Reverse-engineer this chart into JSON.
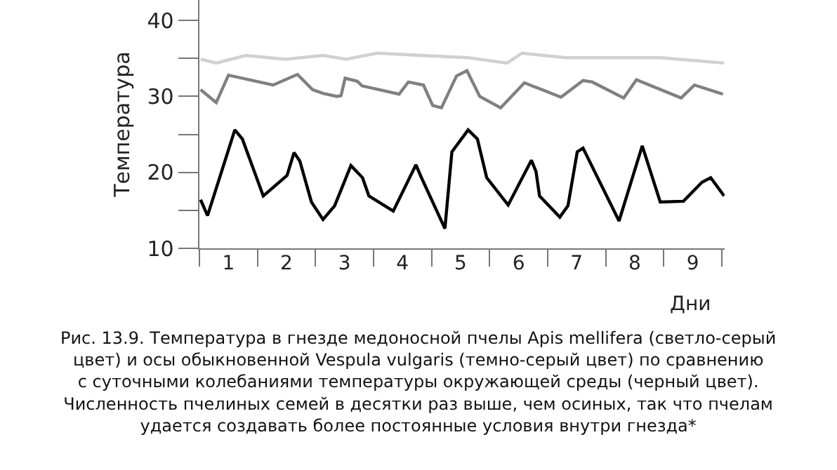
{
  "chart_data": {
    "type": "line",
    "xlabel": "Дни",
    "ylabel": "Температура",
    "annotations": [
      "Рис. 13.9. Температура в гнезде медоносной пчелы Apis mellifera (светло-серый\nцвет) и осы обыкновенной Vespula vulgaris (темно-серый цвет) по сравнению\nс суточными колебаниями температуры окружающей среды (черный цвет).\nЧисленность пчелиных семей в десятки раз выше, чем осиных, так что пчелам\nудается создавать более постоянные условия внутри гнезда*"
    ],
    "series": [
      {
        "color": "#d0d0d0",
        "x": [
          0.02,
          0.29,
          0.8,
          1.48,
          2.13,
          2.53,
          3.06,
          3.82,
          4.63,
          5.3,
          5.56,
          6.32,
          7.94,
          9.04
        ],
        "values": [
          34.9,
          34.4,
          35.4,
          34.9,
          35.4,
          34.9,
          35.7,
          35.4,
          35.1,
          34.4,
          35.7,
          35.1,
          35.1,
          34.4
        ]
      },
      {
        "color": "#808080",
        "x": [
          0.02,
          0.29,
          0.5,
          1.27,
          1.69,
          1.95,
          2.13,
          2.37,
          2.44,
          2.51,
          2.72,
          2.8,
          3.44,
          3.6,
          3.86,
          4.02,
          4.17,
          4.43,
          4.61,
          4.83,
          5.19,
          5.6,
          6.23,
          6.61,
          6.77,
          7.31,
          7.53,
          8.3,
          8.53,
          9.02
        ],
        "values": [
          30.9,
          29.2,
          32.8,
          31.5,
          32.9,
          30.9,
          30.4,
          30.0,
          30.1,
          32.4,
          32.0,
          31.4,
          30.3,
          31.9,
          31.5,
          28.8,
          28.5,
          32.7,
          33.4,
          30.0,
          28.5,
          31.8,
          29.9,
          32.1,
          31.9,
          29.8,
          32.2,
          29.8,
          31.5,
          30.3
        ]
      },
      {
        "color": "#000000",
        "x": [
          0.02,
          0.14,
          0.61,
          0.74,
          1.1,
          1.51,
          1.63,
          1.73,
          1.93,
          2.13,
          2.33,
          2.61,
          2.81,
          2.92,
          3.34,
          3.73,
          3.82,
          4.23,
          4.35,
          4.63,
          4.79,
          4.95,
          5.32,
          5.72,
          5.8,
          5.86,
          6.21,
          6.35,
          6.51,
          6.61,
          7.23,
          7.63,
          7.94,
          8.34,
          8.66,
          8.81,
          9.04
        ],
        "values": [
          16.4,
          14.3,
          25.6,
          24.4,
          16.9,
          19.6,
          22.6,
          21.5,
          16.1,
          13.8,
          15.6,
          20.9,
          19.3,
          16.9,
          14.9,
          21.0,
          19.4,
          12.6,
          22.7,
          25.6,
          24.4,
          19.3,
          15.7,
          21.6,
          20.1,
          16.9,
          14.1,
          15.6,
          22.7,
          23.2,
          13.6,
          23.5,
          16.1,
          16.2,
          18.7,
          19.3,
          16.9
        ]
      }
    ],
    "xlim": [
      0,
      9.05
    ],
    "xticks": [
      {
        "value": 0,
        "label": null
      },
      {
        "value": 1,
        "label": null
      },
      {
        "value": 2,
        "label": null
      },
      {
        "value": 3,
        "label": null
      },
      {
        "value": 4,
        "label": null
      },
      {
        "value": 5,
        "label": null
      },
      {
        "value": 6,
        "label": null
      },
      {
        "value": 7,
        "label": null
      },
      {
        "value": 8,
        "label": null
      },
      {
        "value": 9,
        "label": null
      },
      {
        "value": 0.5,
        "label": "1"
      },
      {
        "value": 1.5,
        "label": "2"
      },
      {
        "value": 2.5,
        "label": "3"
      },
      {
        "value": 3.5,
        "label": "4"
      },
      {
        "value": 4.5,
        "label": "5"
      },
      {
        "value": 5.5,
        "label": "6"
      },
      {
        "value": 6.5,
        "label": "7"
      },
      {
        "value": 7.5,
        "label": "8"
      },
      {
        "value": 8.5,
        "label": "9"
      }
    ],
    "ylim": [
      10,
      42.7
    ],
    "yticks": [
      10,
      {
        "value": 15,
        "label": null
      },
      20,
      {
        "value": 25,
        "label": null
      },
      30,
      {
        "value": 35,
        "label": null
      },
      40
    ],
    "marker": "none",
    "line_style": "solid"
  }
}
